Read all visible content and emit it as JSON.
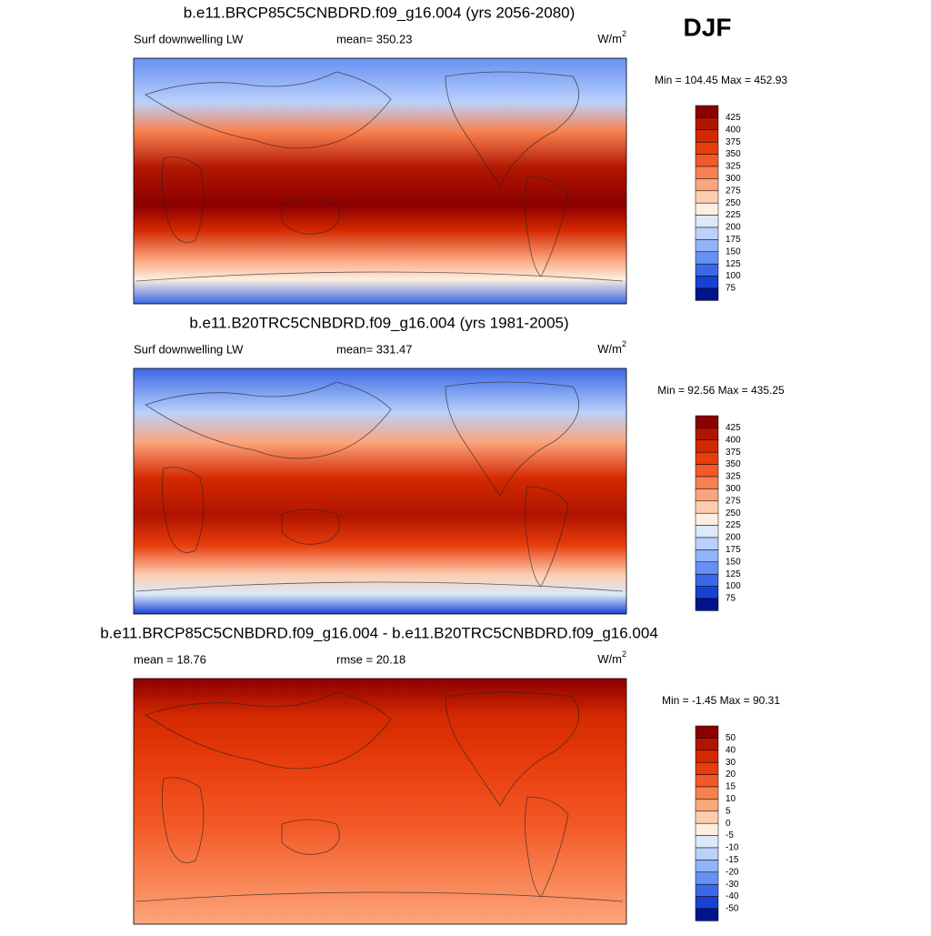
{
  "season": "DJF",
  "panels": [
    {
      "title": "b.e11.BRCP85C5CNBDRD.f09_g16.004 (yrs 2056-2080)",
      "left": "Surf downwelling LW",
      "center": "mean= 350.23",
      "unit": "W/m",
      "unit_sup": "2",
      "minmax": "Min = 104.45 Max = 452.93",
      "colorbar": [
        425,
        400,
        375,
        350,
        325,
        300,
        275,
        250,
        225,
        200,
        175,
        150,
        125,
        100,
        75
      ]
    },
    {
      "title": "b.e11.B20TRC5CNBDRD.f09_g16.004 (yrs 1981-2005)",
      "left": "Surf downwelling LW",
      "center": "mean= 331.47",
      "unit": "W/m",
      "unit_sup": "2",
      "minmax": "Min =  92.56 Max = 435.25",
      "colorbar": [
        425,
        400,
        375,
        350,
        325,
        300,
        275,
        250,
        225,
        200,
        175,
        150,
        125,
        100,
        75
      ]
    },
    {
      "title": "b.e11.BRCP85C5CNBDRD.f09_g16.004 - b.e11.B20TRC5CNBDRD.f09_g16.004",
      "left": "mean =  18.76",
      "center": "rmse =  20.18",
      "unit": "W/m",
      "unit_sup": "2",
      "minmax": "Min =  -1.45 Max =  90.31",
      "colorbar": [
        50,
        40,
        30,
        20,
        15,
        10,
        5,
        0,
        -5,
        -10,
        -15,
        -20,
        -30,
        -40,
        -50
      ]
    }
  ],
  "colors": [
    "#8b0000",
    "#b01500",
    "#d42800",
    "#e83d0c",
    "#f35928",
    "#f8804f",
    "#fba57c",
    "#fdcdb0",
    "#fdeee0",
    "#dce9fb",
    "#bad1fb",
    "#90b3fa",
    "#6690f3",
    "#3b68e6",
    "#1641d2",
    "#00148c"
  ]
}
